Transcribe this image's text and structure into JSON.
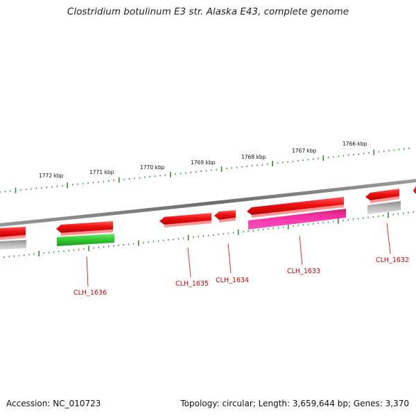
{
  "title": "Clostridium botulinum E3 str. Alaska E43, complete genome",
  "footer": {
    "accession": "Accession: NC_010723",
    "topology": "Topology: circular; Length: 3,659,644 bp; Genes: 3,370"
  },
  "kbp_labels": [
    "1772 kbp",
    "1771 kbp",
    "1770 kbp",
    "1769 kbp",
    "1768 kbp",
    "1767 kbp",
    "1766 kbp"
  ],
  "gene_labels": [
    "CLH_1636",
    "CLH_1635",
    "CLH_1634",
    "CLH_1633",
    "CLH_1632"
  ],
  "colors": {
    "backbone": "#7a7a7a",
    "tick": "#2e8b2e",
    "cds_red": "#ee1111",
    "cds_green": "#33cc33",
    "cds_magenta": "#ee2288",
    "cds_gray": "#b0b0b0",
    "label_red": "#cc0000"
  }
}
